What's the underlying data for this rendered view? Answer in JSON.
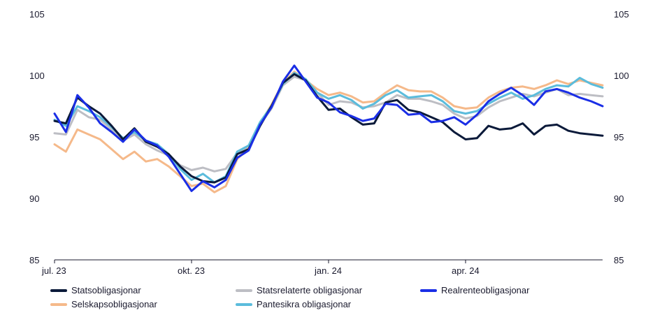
{
  "chart_data": {
    "type": "line",
    "title": "",
    "xlabel": "",
    "ylabel": "",
    "ylim": [
      85,
      105
    ],
    "yticks": [
      "105",
      "100",
      "95",
      "90",
      "85"
    ],
    "ytick_values": [
      105,
      100,
      95,
      90,
      85
    ],
    "xticks": [
      "jul. 23",
      "okt. 23",
      "jan. 24",
      "apr. 24"
    ],
    "xtick_values": [
      0,
      3,
      6,
      9
    ],
    "xlim": [
      0,
      12
    ],
    "grid": false,
    "legend_position": "bottom",
    "series": [
      {
        "name": "Statsobligasjonar",
        "color": "#0b1a3a",
        "x": [
          0.0,
          0.25,
          0.5,
          0.75,
          1.0,
          1.25,
          1.5,
          1.75,
          2.0,
          2.25,
          2.5,
          2.75,
          3.0,
          3.25,
          3.5,
          3.75,
          4.0,
          4.25,
          4.5,
          4.75,
          5.0,
          5.25,
          5.5,
          5.75,
          6.0,
          6.25,
          6.5,
          6.75,
          7.0,
          7.25,
          7.5,
          7.75,
          8.0,
          8.25,
          8.5,
          8.75,
          9.0,
          9.25,
          9.5,
          9.75,
          10.0,
          10.25,
          10.5,
          10.75,
          11.0,
          11.25,
          11.5,
          11.75,
          12.0
        ],
        "y": [
          96.3,
          96.1,
          98.2,
          97.5,
          96.9,
          95.9,
          94.8,
          95.7,
          94.6,
          94.2,
          93.6,
          92.6,
          91.8,
          91.4,
          91.3,
          91.7,
          93.6,
          94.0,
          95.9,
          97.5,
          99.4,
          100.1,
          99.6,
          98.3,
          97.2,
          97.3,
          96.6,
          96.0,
          96.1,
          97.8,
          98.0,
          97.2,
          97.0,
          96.6,
          96.2,
          95.4,
          94.8,
          94.9,
          95.9,
          95.6,
          95.7,
          96.1,
          95.2,
          95.9,
          96.0,
          95.5,
          95.3,
          95.2,
          95.1
        ]
      },
      {
        "name": "Statsrelaterte obligasjonar",
        "color": "#bdbec4",
        "x": [
          0.0,
          0.25,
          0.5,
          0.75,
          1.0,
          1.25,
          1.5,
          1.75,
          2.0,
          2.25,
          2.5,
          2.75,
          3.0,
          3.25,
          3.5,
          3.75,
          4.0,
          4.25,
          4.5,
          4.75,
          5.0,
          5.25,
          5.5,
          5.75,
          6.0,
          6.25,
          6.5,
          6.75,
          7.0,
          7.25,
          7.5,
          7.75,
          8.0,
          8.25,
          8.5,
          8.75,
          9.0,
          9.25,
          9.5,
          9.75,
          10.0,
          10.25,
          10.5,
          10.75,
          11.0,
          11.25,
          11.5,
          11.75,
          12.0
        ],
        "y": [
          95.3,
          95.2,
          97.2,
          96.6,
          96.4,
          95.6,
          94.7,
          95.2,
          94.4,
          93.9,
          93.5,
          92.7,
          92.3,
          92.5,
          92.2,
          92.4,
          93.7,
          94.2,
          96.0,
          97.3,
          99.2,
          99.9,
          99.6,
          98.6,
          97.6,
          97.9,
          97.8,
          97.4,
          97.5,
          97.8,
          98.4,
          98.1,
          98.1,
          97.9,
          97.6,
          96.9,
          96.5,
          96.7,
          97.4,
          97.9,
          98.2,
          98.5,
          98.3,
          98.6,
          98.9,
          98.4,
          98.5,
          98.4,
          98.3
        ]
      },
      {
        "name": "Realrenteobligasjonar",
        "color": "#1a2ee6",
        "x": [
          0.0,
          0.25,
          0.5,
          0.75,
          1.0,
          1.25,
          1.5,
          1.75,
          2.0,
          2.25,
          2.5,
          2.75,
          3.0,
          3.25,
          3.5,
          3.75,
          4.0,
          4.25,
          4.5,
          4.75,
          5.0,
          5.25,
          5.5,
          5.75,
          6.0,
          6.25,
          6.5,
          6.75,
          7.0,
          7.25,
          7.5,
          7.75,
          8.0,
          8.25,
          8.5,
          8.75,
          9.0,
          9.25,
          9.5,
          9.75,
          10.0,
          10.25,
          10.5,
          10.75,
          11.0,
          11.25,
          11.5,
          11.75,
          12.0
        ],
        "y": [
          96.9,
          95.4,
          98.4,
          97.4,
          96.1,
          95.4,
          94.6,
          95.6,
          94.7,
          94.3,
          93.4,
          92.0,
          90.6,
          91.4,
          90.9,
          91.5,
          93.3,
          93.9,
          96.0,
          97.4,
          99.5,
          100.8,
          99.5,
          98.2,
          97.8,
          97.0,
          96.7,
          96.3,
          96.5,
          97.7,
          97.6,
          96.8,
          96.9,
          96.2,
          96.3,
          96.6,
          96.0,
          96.8,
          97.9,
          98.5,
          99.0,
          98.4,
          97.6,
          98.7,
          98.9,
          98.6,
          98.2,
          97.9,
          97.5
        ]
      },
      {
        "name": "Selskapsobligasjonar",
        "color": "#f5b98a",
        "x": [
          0.0,
          0.25,
          0.5,
          0.75,
          1.0,
          1.25,
          1.5,
          1.75,
          2.0,
          2.25,
          2.5,
          2.75,
          3.0,
          3.25,
          3.5,
          3.75,
          4.0,
          4.25,
          4.5,
          4.75,
          5.0,
          5.25,
          5.5,
          5.75,
          6.0,
          6.25,
          6.5,
          6.75,
          7.0,
          7.25,
          7.5,
          7.75,
          8.0,
          8.25,
          8.5,
          8.75,
          9.0,
          9.25,
          9.5,
          9.75,
          10.0,
          10.25,
          10.5,
          10.75,
          11.0,
          11.25,
          11.5,
          11.75,
          12.0
        ],
        "y": [
          94.4,
          93.8,
          95.6,
          95.2,
          94.8,
          94.0,
          93.2,
          93.8,
          93.0,
          93.2,
          92.6,
          91.8,
          91.0,
          91.2,
          90.5,
          91.0,
          93.2,
          94.1,
          96.1,
          97.6,
          99.4,
          100.3,
          99.6,
          98.9,
          98.4,
          98.6,
          98.3,
          97.8,
          97.9,
          98.6,
          99.2,
          98.8,
          98.7,
          98.7,
          98.2,
          97.5,
          97.3,
          97.4,
          98.2,
          98.7,
          99.0,
          99.1,
          98.9,
          99.2,
          99.6,
          99.3,
          99.6,
          99.4,
          99.2
        ]
      },
      {
        "name": "Pantesikra obligasjonar",
        "color": "#5bbcdc",
        "x": [
          0.0,
          0.25,
          0.5,
          0.75,
          1.0,
          1.25,
          1.5,
          1.75,
          2.0,
          2.25,
          2.5,
          2.75,
          3.0,
          3.25,
          3.5,
          3.75,
          4.0,
          4.25,
          4.5,
          4.75,
          5.0,
          5.25,
          5.5,
          5.75,
          6.0,
          6.25,
          6.5,
          6.75,
          7.0,
          7.25,
          7.5,
          7.75,
          8.0,
          8.25,
          8.5,
          8.75,
          9.0,
          9.25,
          9.5,
          9.75,
          10.0,
          10.25,
          10.5,
          10.75,
          11.0,
          11.25,
          11.5,
          11.75,
          12.0
        ],
        "y": [
          96.4,
          95.9,
          97.5,
          97.1,
          96.6,
          95.8,
          94.9,
          95.4,
          94.7,
          94.4,
          93.6,
          92.4,
          91.5,
          92.0,
          91.3,
          91.8,
          93.8,
          94.3,
          96.2,
          97.5,
          99.3,
          100.2,
          99.7,
          98.6,
          98.1,
          98.4,
          98.0,
          97.3,
          97.7,
          98.4,
          98.8,
          98.2,
          98.3,
          98.4,
          97.9,
          97.1,
          96.9,
          97.1,
          97.7,
          98.2,
          98.6,
          98.1,
          98.4,
          98.9,
          99.2,
          99.1,
          99.8,
          99.3,
          99.0
        ]
      }
    ]
  }
}
